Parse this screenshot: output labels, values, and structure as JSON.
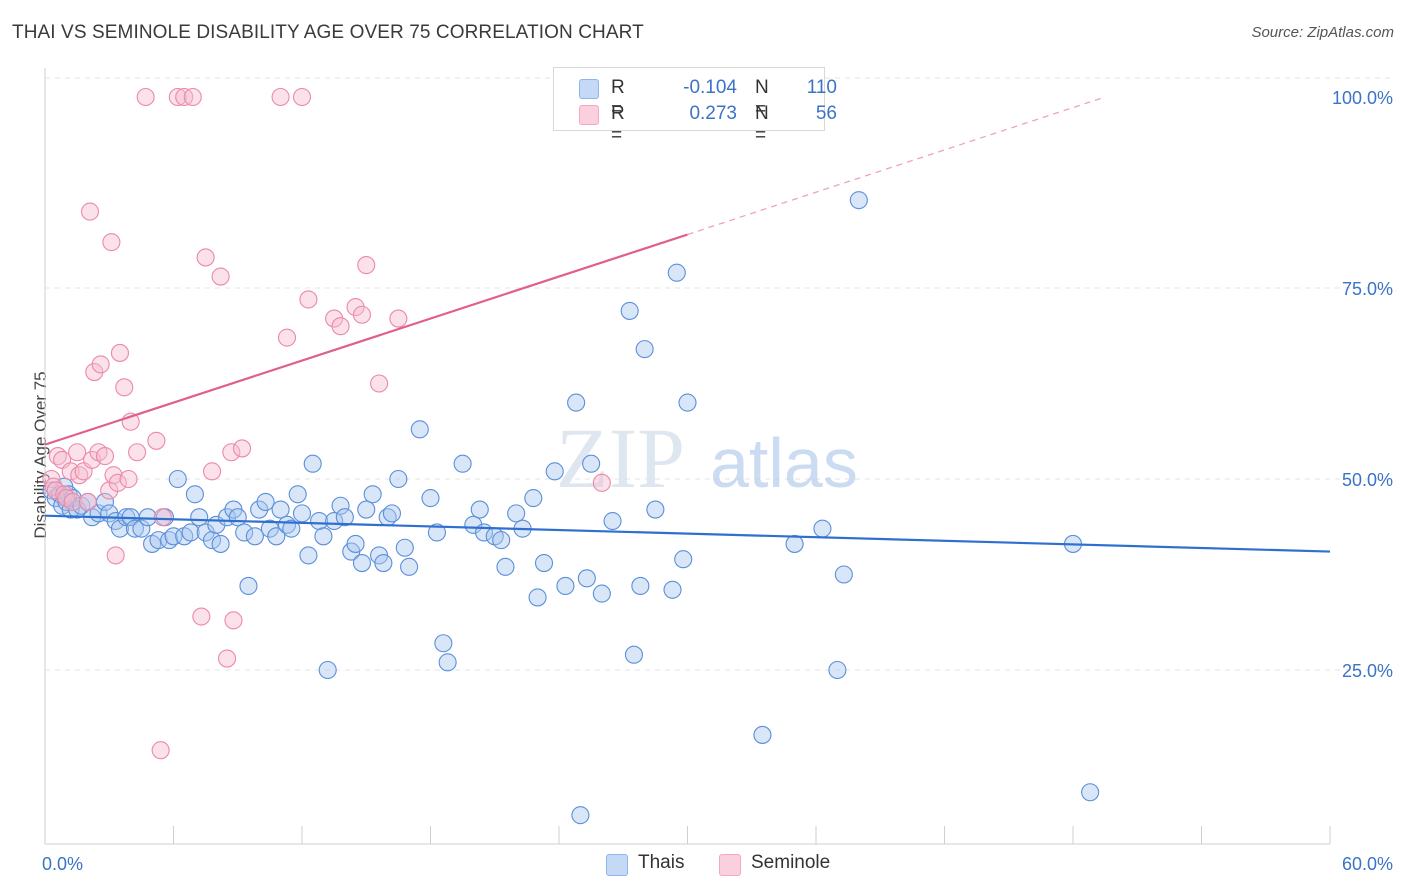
{
  "title": "THAI VS SEMINOLE DISABILITY AGE OVER 75 CORRELATION CHART",
  "source": "Source: ZipAtlas.com",
  "watermark": {
    "zip": "ZIP",
    "atlas": "atlas"
  },
  "legend_top": {
    "rows": [
      {
        "r_label": "R =",
        "r_value": "-0.104",
        "n_label": "N =",
        "n_value": "110",
        "color": "#8db6ec"
      },
      {
        "r_label": "R =",
        "r_value": "0.273",
        "n_label": "N =",
        "n_value": "56",
        "color": "#f4a7c0"
      }
    ]
  },
  "legend_bottom": {
    "items": [
      {
        "label": "Thais",
        "color": "#8db6ec"
      },
      {
        "label": "Seminole",
        "color": "#f4a7c0"
      }
    ]
  },
  "chart_data": {
    "type": "scatter",
    "title": "THAI VS SEMINOLE DISABILITY AGE OVER 75 CORRELATION CHART",
    "xlabel": "",
    "ylabel": "Disability Age Over 75",
    "xlim": [
      0,
      60
    ],
    "ylim": [
      0,
      105
    ],
    "x_tick_labels": [
      "0.0%",
      "60.0%"
    ],
    "y_tick_labels": [
      "25.0%",
      "50.0%",
      "75.0%",
      "100.0%"
    ],
    "y_ticks": [
      25,
      50,
      75,
      100
    ],
    "grid": true,
    "legend_position": "top-center",
    "series": [
      {
        "name": "Thais",
        "color": "#5b8fd9",
        "fill": "#a9c8f0",
        "trendline": {
          "x": [
            0,
            60
          ],
          "y": [
            45.2,
            40.5
          ],
          "color": "#2f6fd0"
        },
        "points": [
          [
            0.3,
            48.5
          ],
          [
            0.5,
            47.5
          ],
          [
            0.7,
            48
          ],
          [
            0.8,
            46.5
          ],
          [
            0.9,
            49
          ],
          [
            1.0,
            47
          ],
          [
            1.1,
            48
          ],
          [
            1.2,
            46
          ],
          [
            1.3,
            47.5
          ],
          [
            1.5,
            46
          ],
          [
            1.7,
            46.5
          ],
          [
            2.0,
            47
          ],
          [
            2.2,
            45
          ],
          [
            2.5,
            45.5
          ],
          [
            2.8,
            47
          ],
          [
            3.0,
            45.5
          ],
          [
            3.3,
            44.5
          ],
          [
            3.5,
            43.5
          ],
          [
            3.8,
            45
          ],
          [
            4.0,
            45
          ],
          [
            4.2,
            43.5
          ],
          [
            4.5,
            43.5
          ],
          [
            4.8,
            45
          ],
          [
            5.0,
            41.5
          ],
          [
            5.3,
            42
          ],
          [
            5.6,
            45
          ],
          [
            5.8,
            42
          ],
          [
            6.0,
            42.5
          ],
          [
            6.2,
            50
          ],
          [
            6.5,
            42.5
          ],
          [
            6.8,
            43
          ],
          [
            7.0,
            48
          ],
          [
            7.2,
            45
          ],
          [
            7.5,
            43
          ],
          [
            7.8,
            42
          ],
          [
            8.0,
            44
          ],
          [
            8.2,
            41.5
          ],
          [
            8.5,
            45
          ],
          [
            8.8,
            46
          ],
          [
            9.0,
            45
          ],
          [
            9.3,
            43
          ],
          [
            9.5,
            36
          ],
          [
            9.8,
            42.5
          ],
          [
            10.0,
            46
          ],
          [
            10.3,
            47
          ],
          [
            10.5,
            43.5
          ],
          [
            10.8,
            42.5
          ],
          [
            11.0,
            46
          ],
          [
            11.3,
            44
          ],
          [
            11.5,
            43.5
          ],
          [
            11.8,
            48
          ],
          [
            12.0,
            45.5
          ],
          [
            12.3,
            40
          ],
          [
            12.5,
            52
          ],
          [
            12.8,
            44.5
          ],
          [
            13.0,
            42.5
          ],
          [
            13.2,
            25
          ],
          [
            13.5,
            44.5
          ],
          [
            13.8,
            46.5
          ],
          [
            14.0,
            45
          ],
          [
            14.3,
            40.5
          ],
          [
            14.5,
            41.5
          ],
          [
            14.8,
            39
          ],
          [
            15.0,
            46
          ],
          [
            15.3,
            48
          ],
          [
            15.6,
            40
          ],
          [
            15.8,
            39
          ],
          [
            16.0,
            45
          ],
          [
            16.2,
            45.5
          ],
          [
            16.5,
            50
          ],
          [
            16.8,
            41
          ],
          [
            17.0,
            38.5
          ],
          [
            17.5,
            56.5
          ],
          [
            18.0,
            47.5
          ],
          [
            18.3,
            43
          ],
          [
            18.6,
            28.5
          ],
          [
            18.8,
            26
          ],
          [
            19.5,
            52
          ],
          [
            20.0,
            44
          ],
          [
            20.3,
            46
          ],
          [
            20.5,
            43
          ],
          [
            21.0,
            42.5
          ],
          [
            21.3,
            42
          ],
          [
            21.5,
            38.5
          ],
          [
            22.0,
            45.5
          ],
          [
            22.3,
            43.5
          ],
          [
            22.8,
            47.5
          ],
          [
            23.0,
            34.5
          ],
          [
            23.3,
            39
          ],
          [
            23.8,
            51
          ],
          [
            24.3,
            36
          ],
          [
            24.8,
            60
          ],
          [
            25.0,
            6
          ],
          [
            25.3,
            37
          ],
          [
            25.5,
            52
          ],
          [
            26.0,
            35
          ],
          [
            26.5,
            44.5
          ],
          [
            27.3,
            72
          ],
          [
            27.5,
            27
          ],
          [
            27.8,
            36
          ],
          [
            28.0,
            67
          ],
          [
            28.5,
            46
          ],
          [
            29.3,
            35.5
          ],
          [
            29.5,
            77
          ],
          [
            29.8,
            39.5
          ],
          [
            30.0,
            60
          ],
          [
            33.5,
            16.5
          ],
          [
            35.0,
            41.5
          ],
          [
            36.3,
            43.5
          ],
          [
            37.0,
            25
          ],
          [
            37.3,
            37.5
          ],
          [
            38.0,
            86.5
          ],
          [
            48.0,
            41.5
          ],
          [
            48.8,
            9
          ]
        ]
      },
      {
        "name": "Seminole",
        "color": "#ec89a8",
        "fill": "#f7bccf",
        "trendline": {
          "x": [
            0,
            30
          ],
          "y": [
            54.5,
            82
          ],
          "dashed_to": [
            49.5,
            100
          ],
          "color": "#e0608a"
        },
        "points": [
          [
            0.3,
            50
          ],
          [
            0.4,
            49
          ],
          [
            0.5,
            48.5
          ],
          [
            0.6,
            53
          ],
          [
            0.8,
            52.5
          ],
          [
            0.9,
            48
          ],
          [
            1.0,
            47.5
          ],
          [
            1.2,
            51
          ],
          [
            1.3,
            47
          ],
          [
            1.5,
            53.5
          ],
          [
            1.6,
            50.5
          ],
          [
            1.8,
            51
          ],
          [
            2.0,
            47
          ],
          [
            2.1,
            85
          ],
          [
            2.2,
            52.5
          ],
          [
            2.3,
            64
          ],
          [
            2.5,
            53.5
          ],
          [
            2.6,
            65
          ],
          [
            2.8,
            53
          ],
          [
            3.0,
            48.5
          ],
          [
            3.1,
            81
          ],
          [
            3.2,
            50.5
          ],
          [
            3.3,
            40
          ],
          [
            3.4,
            49.5
          ],
          [
            3.5,
            66.5
          ],
          [
            3.7,
            62
          ],
          [
            3.9,
            50
          ],
          [
            4.0,
            57.5
          ],
          [
            4.3,
            53.5
          ],
          [
            4.7,
            100
          ],
          [
            5.2,
            55
          ],
          [
            5.4,
            14.5
          ],
          [
            5.5,
            45
          ],
          [
            6.2,
            100
          ],
          [
            6.5,
            100
          ],
          [
            6.9,
            100
          ],
          [
            7.3,
            32
          ],
          [
            7.5,
            79
          ],
          [
            7.8,
            51
          ],
          [
            8.2,
            76.5
          ],
          [
            8.5,
            26.5
          ],
          [
            8.7,
            53.5
          ],
          [
            8.8,
            31.5
          ],
          [
            9.2,
            54
          ],
          [
            11.0,
            100
          ],
          [
            11.3,
            68.5
          ],
          [
            12.0,
            100
          ],
          [
            12.3,
            73.5
          ],
          [
            13.5,
            71
          ],
          [
            13.8,
            70
          ],
          [
            14.5,
            72.5
          ],
          [
            14.8,
            71.5
          ],
          [
            15.0,
            78
          ],
          [
            15.6,
            62.5
          ],
          [
            16.5,
            71
          ],
          [
            26.0,
            49.5
          ]
        ]
      }
    ]
  }
}
